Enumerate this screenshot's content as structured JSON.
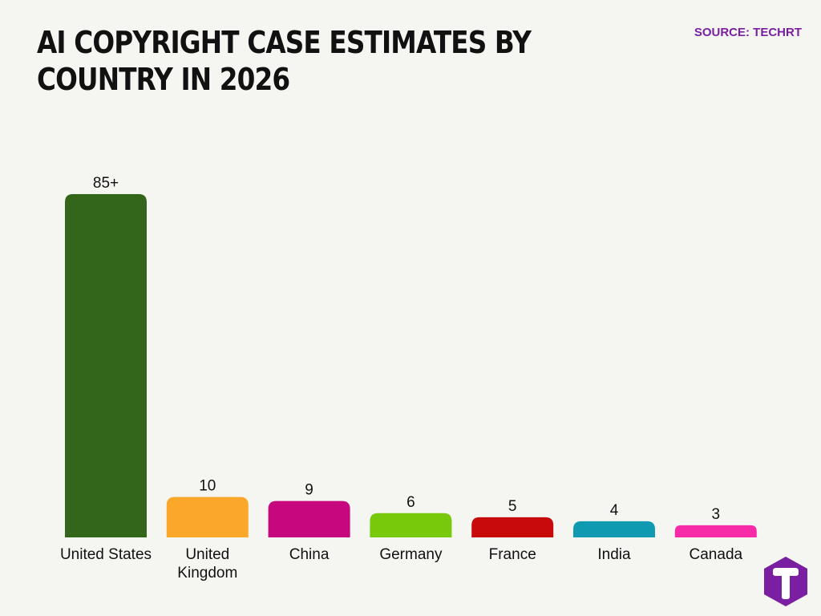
{
  "header": {
    "title": "AI COPYRIGHT CASE ESTIMATES BY COUNTRY IN 2026",
    "source": "SOURCE: TECHRT"
  },
  "chart_data": {
    "type": "bar",
    "title": "AI COPYRIGHT CASE ESTIMATES BY COUNTRY IN 2026",
    "xlabel": "",
    "ylabel": "",
    "grid": false,
    "legend": "none",
    "ylim": [
      0,
      85
    ],
    "categories": [
      "United States",
      "United Kingdom",
      "China",
      "Germany",
      "France",
      "India",
      "Canada"
    ],
    "category_lines": [
      [
        "United States"
      ],
      [
        "United",
        "Kingdom"
      ],
      [
        "China"
      ],
      [
        "Germany"
      ],
      [
        "France"
      ],
      [
        "India"
      ],
      [
        "Canada"
      ]
    ],
    "values": [
      85,
      10,
      9,
      6,
      5,
      4,
      3
    ],
    "value_labels": [
      "85+",
      "10",
      "9",
      "6",
      "5",
      "4",
      "3"
    ],
    "colors": [
      "#33651b",
      "#fba82a",
      "#c7077e",
      "#78c80c",
      "#c90a0a",
      "#0f9ab2",
      "#f72aa8"
    ]
  },
  "logo": {
    "icon": "techrt-logo-icon",
    "color": "#7b1fa2"
  }
}
